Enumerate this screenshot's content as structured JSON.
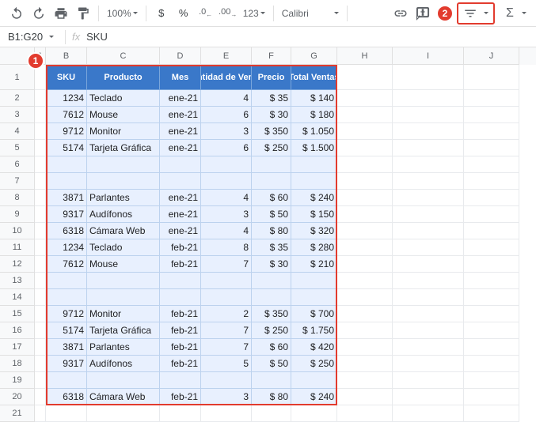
{
  "toolbar": {
    "zoom": "100%",
    "currency": "$",
    "percent": "%",
    "dec_dec": ".0",
    "inc_dec": ".00",
    "format123": "123",
    "font": "Calibri"
  },
  "formula_bar": {
    "name_box": "B1:G20",
    "fx": "SKU"
  },
  "callouts": {
    "one": "1",
    "two": "2"
  },
  "columns": [
    "A",
    "B",
    "C",
    "D",
    "E",
    "F",
    "G",
    "H",
    "I",
    "J"
  ],
  "col_widths": {
    "A": 14,
    "B": 52,
    "C": 92,
    "D": 52,
    "E": 64,
    "F": 50,
    "G": 58,
    "H": 70,
    "I": 90,
    "J": 70
  },
  "row_count": 21,
  "headers": {
    "sku": "SKU",
    "producto": "Producto",
    "mes": "Mes",
    "cant": "Cantidad de Ventas",
    "precio": "Precio",
    "total": "Total Ventas"
  },
  "rows": [
    {
      "sku": "1234",
      "prod": "Teclado",
      "mes": "ene-21",
      "cant": "4",
      "precio": "$ 35",
      "total": "$ 140"
    },
    {
      "sku": "7612",
      "prod": "Mouse",
      "mes": "ene-21",
      "cant": "6",
      "precio": "$ 30",
      "total": "$ 180"
    },
    {
      "sku": "9712",
      "prod": "Monitor",
      "mes": "ene-21",
      "cant": "3",
      "precio": "$ 350",
      "total": "$ 1.050"
    },
    {
      "sku": "5174",
      "prod": "Tarjeta Gráfica",
      "mes": "ene-21",
      "cant": "6",
      "precio": "$ 250",
      "total": "$ 1.500"
    },
    {
      "sku": "",
      "prod": "",
      "mes": "",
      "cant": "",
      "precio": "",
      "total": ""
    },
    {
      "sku": "",
      "prod": "",
      "mes": "",
      "cant": "",
      "precio": "",
      "total": ""
    },
    {
      "sku": "3871",
      "prod": "Parlantes",
      "mes": "ene-21",
      "cant": "4",
      "precio": "$ 60",
      "total": "$ 240"
    },
    {
      "sku": "9317",
      "prod": "Audífonos",
      "mes": "ene-21",
      "cant": "3",
      "precio": "$ 50",
      "total": "$ 150"
    },
    {
      "sku": "6318",
      "prod": "Cámara Web",
      "mes": "ene-21",
      "cant": "4",
      "precio": "$ 80",
      "total": "$ 320"
    },
    {
      "sku": "1234",
      "prod": "Teclado",
      "mes": "feb-21",
      "cant": "8",
      "precio": "$ 35",
      "total": "$ 280"
    },
    {
      "sku": "7612",
      "prod": "Mouse",
      "mes": "feb-21",
      "cant": "7",
      "precio": "$ 30",
      "total": "$ 210"
    },
    {
      "sku": "",
      "prod": "",
      "mes": "",
      "cant": "",
      "precio": "",
      "total": ""
    },
    {
      "sku": "",
      "prod": "",
      "mes": "",
      "cant": "",
      "precio": "",
      "total": ""
    },
    {
      "sku": "9712",
      "prod": "Monitor",
      "mes": "feb-21",
      "cant": "2",
      "precio": "$ 350",
      "total": "$ 700"
    },
    {
      "sku": "5174",
      "prod": "Tarjeta Gráfica",
      "mes": "feb-21",
      "cant": "7",
      "precio": "$ 250",
      "total": "$ 1.750"
    },
    {
      "sku": "3871",
      "prod": "Parlantes",
      "mes": "feb-21",
      "cant": "7",
      "precio": "$ 60",
      "total": "$ 420"
    },
    {
      "sku": "9317",
      "prod": "Audífonos",
      "mes": "feb-21",
      "cant": "5",
      "precio": "$ 50",
      "total": "$ 250"
    },
    {
      "sku": "",
      "prod": "",
      "mes": "",
      "cant": "",
      "precio": "",
      "total": ""
    },
    {
      "sku": "6318",
      "prod": "Cámara Web",
      "mes": "feb-21",
      "cant": "3",
      "precio": "$ 80",
      "total": "$ 240"
    }
  ],
  "colors": {
    "header_bg": "#3a78c9",
    "selection_bg": "#e8f0fe",
    "callout_red": "#e23b2e"
  }
}
